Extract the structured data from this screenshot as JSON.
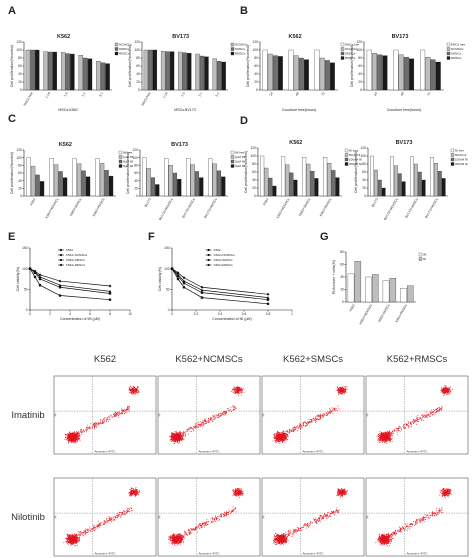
{
  "panel_letters": [
    "A",
    "B",
    "C",
    "D",
    "E",
    "F",
    "G"
  ],
  "chart_data": [
    {
      "panel": "A",
      "type": "bar",
      "title": "K562",
      "ylabel": "Cell proliferation(%control)",
      "xlabel": "MSCs:K562",
      "ylim": [
        0,
        120
      ],
      "categories": [
        "MSCs free",
        "1:10",
        "1:5",
        "1:1",
        "5:1"
      ],
      "series": [
        {
          "name": "NCMSCs",
          "values": [
            100,
            96,
            94,
            87,
            72
          ]
        },
        {
          "name": "SMSCs",
          "values": [
            100,
            95,
            91,
            80,
            68
          ]
        },
        {
          "name": "RMSCs",
          "values": [
            100,
            95,
            90,
            78,
            66
          ]
        }
      ]
    },
    {
      "panel": "A",
      "type": "bar",
      "title": "BV173",
      "ylabel": "Cell proliferation(%control)",
      "xlabel": "MSCs:BV173",
      "ylim": [
        0,
        120
      ],
      "categories": [
        "MSCs free",
        "1:10",
        "1:5",
        "1:1",
        "5:1"
      ],
      "series": [
        {
          "name": "NCMSCs",
          "values": [
            100,
            97,
            95,
            90,
            78
          ]
        },
        {
          "name": "SMSCs",
          "values": [
            100,
            96,
            93,
            85,
            72
          ]
        },
        {
          "name": "RMSCs",
          "values": [
            100,
            96,
            92,
            83,
            70
          ]
        }
      ]
    },
    {
      "panel": "B",
      "type": "bar",
      "title": "K562",
      "ylabel": "Cell proliferation(%control)",
      "xlabel": "Coculture time(hours)",
      "ylim": [
        0,
        120
      ],
      "categories": [
        "24",
        "48",
        "72"
      ],
      "series": [
        {
          "name": "MSCs free",
          "values": [
            100,
            100,
            100
          ]
        },
        {
          "name": "NCMSCs",
          "values": [
            90,
            86,
            80
          ]
        },
        {
          "name": "SMSCs",
          "values": [
            86,
            80,
            74
          ]
        },
        {
          "name": "RMSCs",
          "values": [
            84,
            76,
            68
          ]
        }
      ]
    },
    {
      "panel": "B",
      "type": "bar",
      "title": "BV173",
      "ylabel": "Cell proliferation(%control)",
      "xlabel": "Coculture time(hours)",
      "ylim": [
        0,
        120
      ],
      "categories": [
        "24",
        "48",
        "72"
      ],
      "series": [
        {
          "name": "MSCs free",
          "values": [
            100,
            100,
            100
          ]
        },
        {
          "name": "NCMSCs",
          "values": [
            92,
            88,
            82
          ]
        },
        {
          "name": "SMSCs",
          "values": [
            88,
            82,
            76
          ]
        },
        {
          "name": "RMSCs",
          "values": [
            86,
            78,
            70
          ]
        }
      ]
    },
    {
      "panel": "C",
      "type": "bar",
      "title": "K562",
      "ylabel": "Cell proliferation(%control)",
      "ylim": [
        0,
        120
      ],
      "categories": [
        "K562",
        "K562+NCMSCs",
        "K562+SMSCs",
        "K562+RMSCs"
      ],
      "series": [
        {
          "name": "IM free",
          "values": [
            100,
            98,
            97,
            97
          ]
        },
        {
          "name": "1μM IM",
          "values": [
            78,
            82,
            84,
            85
          ]
        },
        {
          "name": "3μM IM",
          "values": [
            55,
            64,
            66,
            67
          ]
        },
        {
          "name": "5μM IM",
          "values": [
            38,
            48,
            50,
            52
          ]
        }
      ]
    },
    {
      "panel": "C",
      "type": "bar",
      "title": "BV173",
      "ylabel": "Cell proliferation(%control)",
      "ylim": [
        0,
        120
      ],
      "categories": [
        "BV173",
        "BV173+NCMSCs",
        "BV173+SMSCs",
        "BV173+RMSCs"
      ],
      "series": [
        {
          "name": "IM free",
          "values": [
            100,
            98,
            98,
            97
          ]
        },
        {
          "name": "1μM IM",
          "values": [
            72,
            80,
            82,
            84
          ]
        },
        {
          "name": "3μM IM",
          "values": [
            48,
            60,
            64,
            66
          ]
        },
        {
          "name": "5μM IM",
          "values": [
            30,
            44,
            48,
            50
          ]
        }
      ]
    },
    {
      "panel": "D",
      "type": "bar",
      "title": "K562",
      "ylabel": "Cell proliferation(%control)",
      "ylim": [
        0,
        120
      ],
      "categories": [
        "K562",
        "K562+NCMSCs",
        "K562+SMSCs",
        "K562+RMSCs"
      ],
      "series": [
        {
          "name": "NI free",
          "values": [
            100,
            98,
            97,
            97
          ]
        },
        {
          "name": "50nM NI",
          "values": [
            70,
            78,
            80,
            82
          ]
        },
        {
          "name": "100nM NI",
          "values": [
            45,
            58,
            62,
            64
          ]
        },
        {
          "name": "200nM NI",
          "values": [
            25,
            40,
            44,
            46
          ]
        }
      ]
    },
    {
      "panel": "D",
      "type": "bar",
      "title": "BV173",
      "ylabel": "Cell proliferation(%control)",
      "ylim": [
        0,
        120
      ],
      "categories": [
        "BV173",
        "BV173+NCMSCs",
        "BV173+SMSCs",
        "BV173+RMSCs"
      ],
      "series": [
        {
          "name": "NI free",
          "values": [
            100,
            98,
            98,
            97
          ]
        },
        {
          "name": "50nM NI",
          "values": [
            65,
            76,
            80,
            82
          ]
        },
        {
          "name": "100nM NI",
          "values": [
            40,
            56,
            60,
            62
          ]
        },
        {
          "name": "200nM NI",
          "values": [
            20,
            36,
            40,
            44
          ]
        }
      ]
    },
    {
      "panel": "E",
      "type": "line",
      "ylabel": "Cell viability(%)",
      "xlabel": "Concentration of IM (μM)",
      "xlim": [
        0,
        10
      ],
      "ylim": [
        0,
        150
      ],
      "x": [
        0,
        0.5,
        1,
        3,
        8
      ],
      "series": [
        {
          "name": "K562",
          "values": [
            100,
            80,
            60,
            35,
            25
          ]
        },
        {
          "name": "K562+NCMSCs",
          "values": [
            100,
            90,
            75,
            55,
            40
          ]
        },
        {
          "name": "K562+SMSCs",
          "values": [
            100,
            92,
            80,
            60,
            45
          ]
        },
        {
          "name": "K562+RMSCs",
          "values": [
            100,
            94,
            85,
            70,
            58
          ]
        }
      ]
    },
    {
      "panel": "F",
      "type": "line",
      "ylabel": "Cell viability(%)",
      "xlabel": "Concentration of NI (μM)",
      "xlim": [
        0,
        1.0
      ],
      "ylim": [
        0,
        150
      ],
      "x": [
        0,
        0.05,
        0.1,
        0.25,
        0.8
      ],
      "series": [
        {
          "name": "K562",
          "values": [
            100,
            75,
            55,
            30,
            15
          ]
        },
        {
          "name": "K562+NCMSCs",
          "values": [
            100,
            82,
            65,
            42,
            25
          ]
        },
        {
          "name": "K562+SMSCs",
          "values": [
            100,
            86,
            70,
            48,
            30
          ]
        },
        {
          "name": "K562+RMSCs",
          "values": [
            100,
            90,
            78,
            55,
            38
          ]
        }
      ]
    },
    {
      "panel": "G",
      "type": "bar",
      "ylabel": "PI/Annexin + cells(%)",
      "ylim": [
        0,
        80
      ],
      "categories": [
        "K562",
        "K562+NCMSCs",
        "K562+SMSCs",
        "K562+RMSCs"
      ],
      "series": [
        {
          "name": "IM",
          "values": [
            45,
            40,
            34,
            22
          ]
        },
        {
          "name": "NI",
          "values": [
            65,
            44,
            38,
            26
          ]
        }
      ]
    }
  ],
  "flow": {
    "columns": [
      "K562",
      "K562+NCMSCs",
      "K562+SMSCs",
      "K562+RMSCs"
    ],
    "rows": [
      "Imatinib",
      "Nilotinib"
    ],
    "x_axis_label": "Annexin-v-FITC",
    "y_axis_label": "PI"
  },
  "colors": {
    "bar_shades": [
      "#ffffff",
      "#bdbdbd",
      "#6e6e6e",
      "#1a1a1a"
    ],
    "dot_red": "#e0141e"
  }
}
